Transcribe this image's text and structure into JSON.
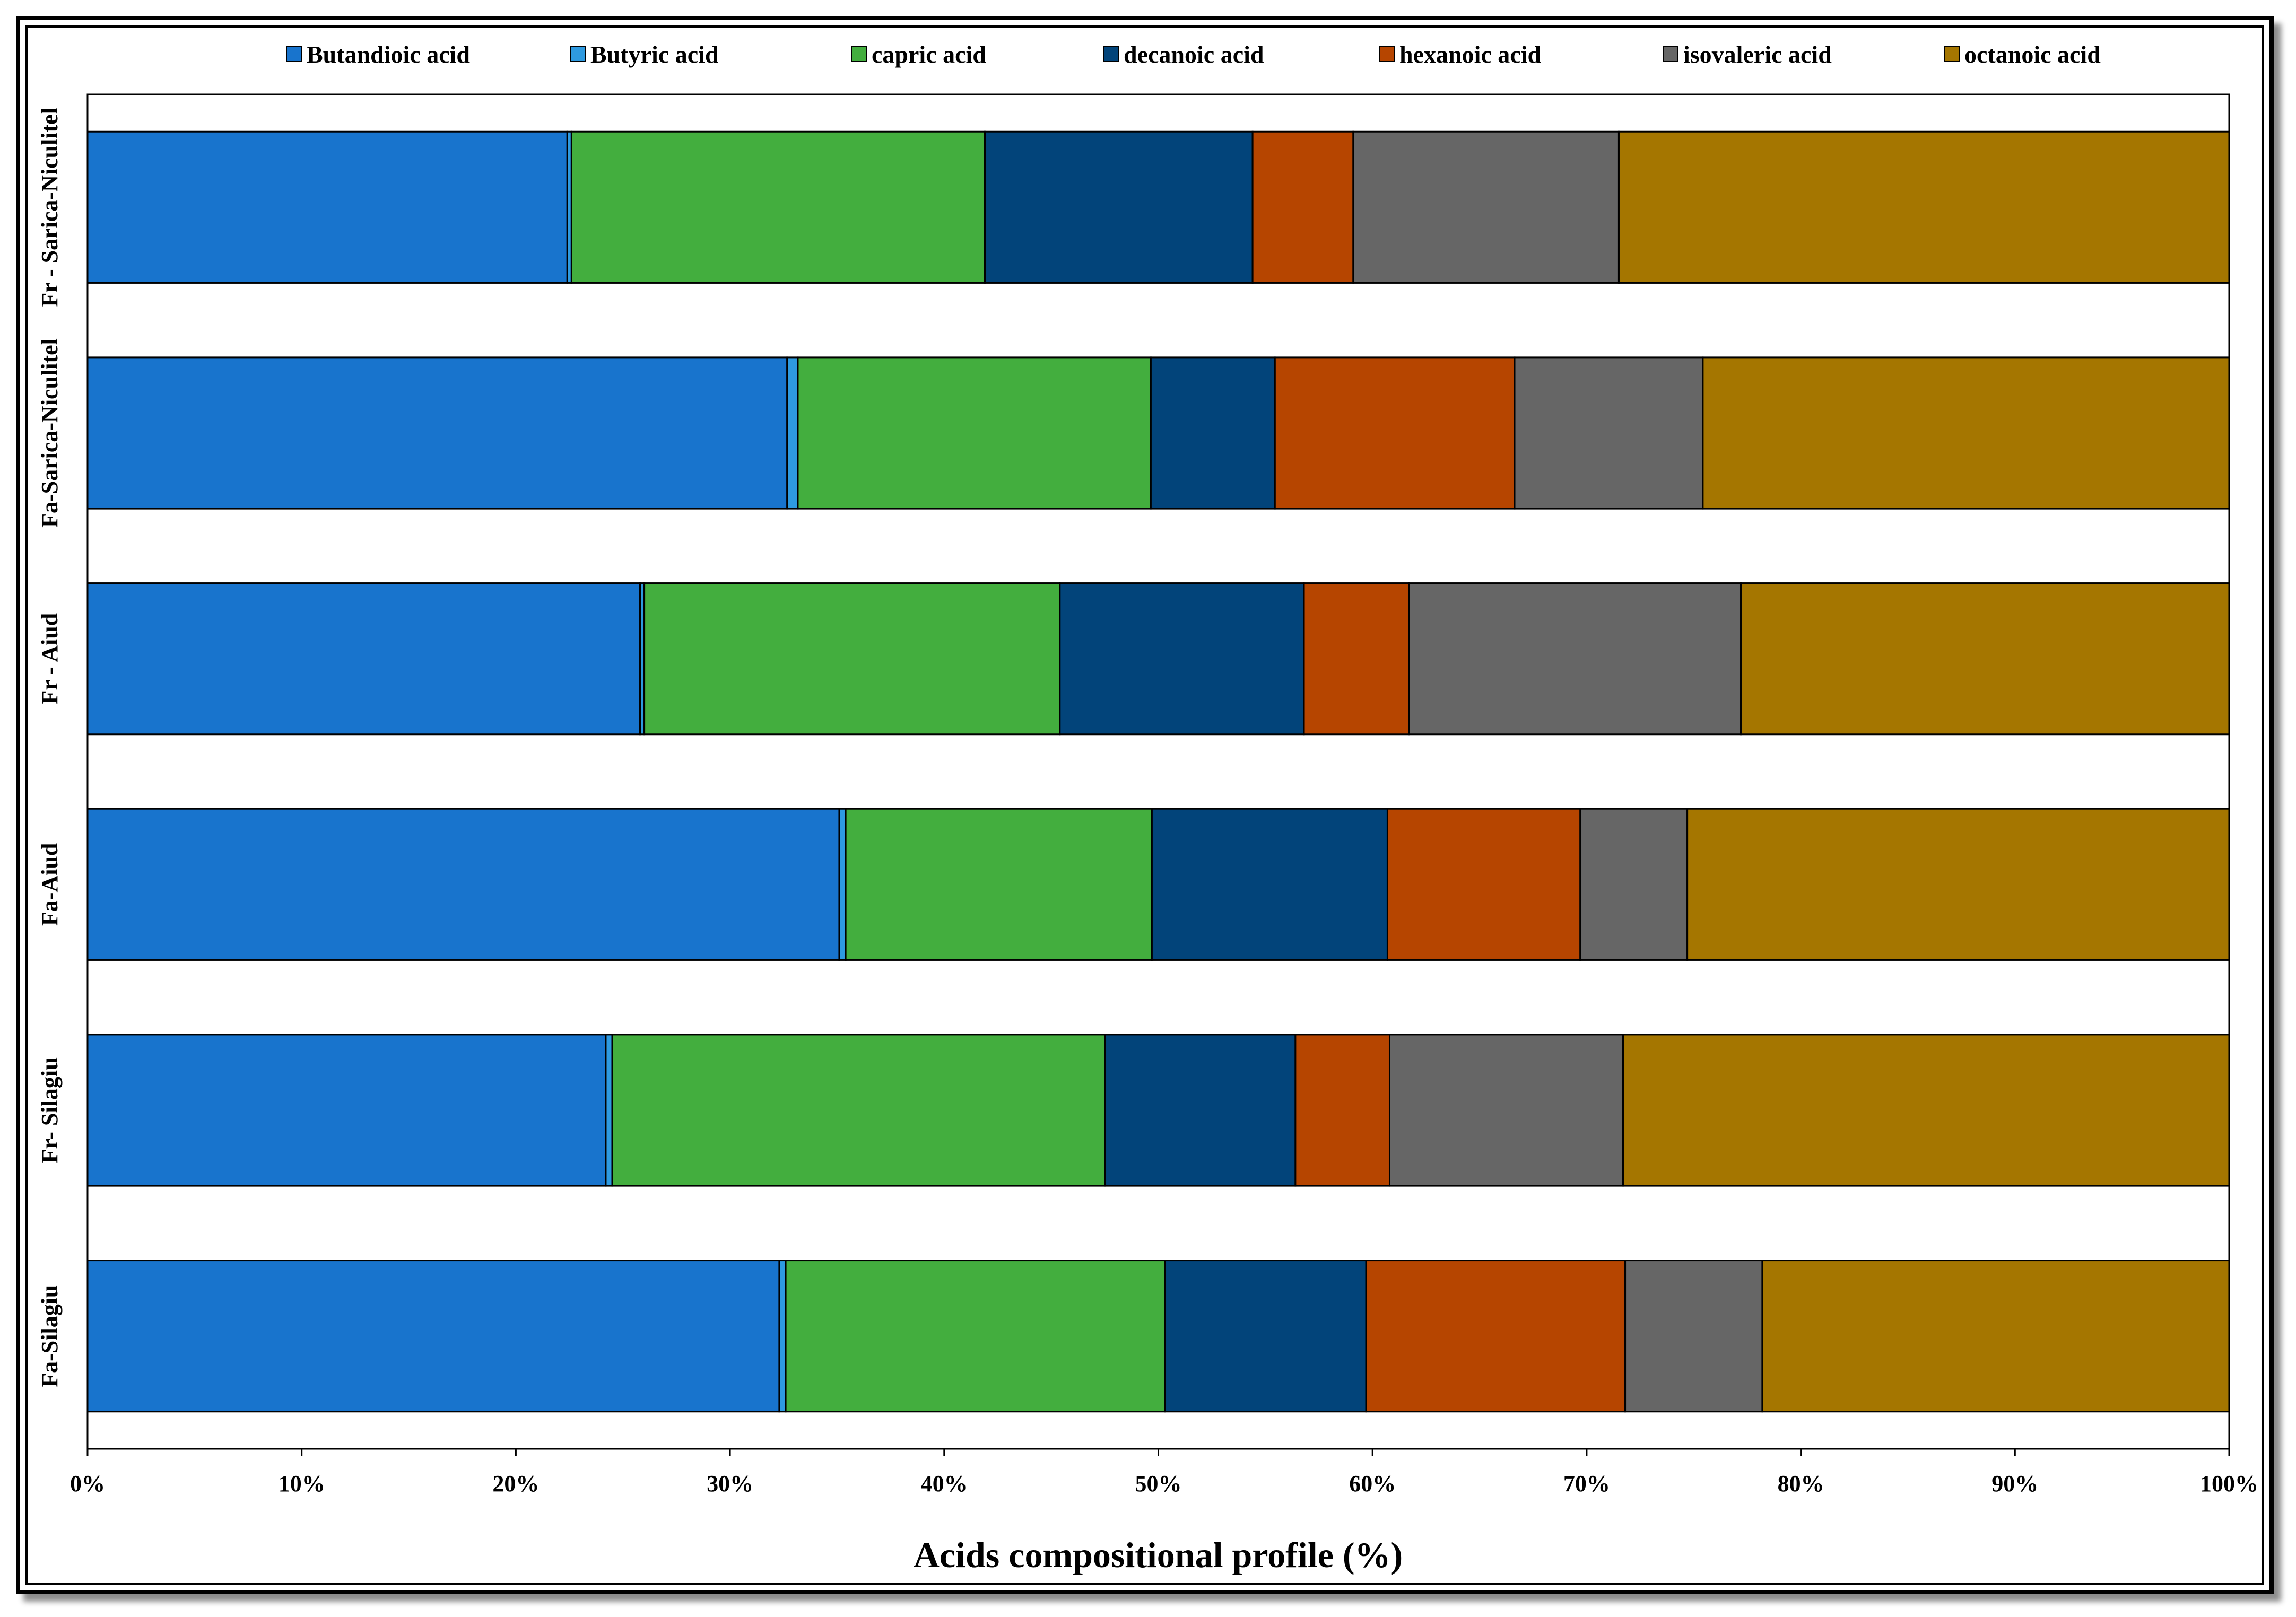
{
  "chart_data": {
    "type": "bar",
    "orientation": "horizontal",
    "stacked": "percent",
    "xlabel": "Acids compositional profile (%)",
    "ylabel": "",
    "xlim": [
      0,
      100
    ],
    "x_ticks": [
      "0%",
      "10%",
      "20%",
      "30%",
      "40%",
      "50%",
      "60%",
      "70%",
      "80%",
      "90%",
      "100%"
    ],
    "legend_position": "top",
    "categories": [
      "Fa-Silagiu",
      "Fr- Silagiu",
      "Fa-Aiud",
      "Fr - Aiud",
      "Fa-Sarica-Niculitel",
      "Fr - Sarica-Niculitel"
    ],
    "series": [
      {
        "name": "Butandioic acid",
        "color": "#1874CD",
        "values": [
          32.3,
          24.2,
          35.1,
          25.8,
          32.7,
          22.4
        ]
      },
      {
        "name": "Butyric acid",
        "color": "#2E9AE0",
        "values": [
          0.3,
          0.3,
          0.3,
          0.2,
          0.5,
          0.2
        ]
      },
      {
        "name": "capric acid",
        "color": "#43AE3E",
        "values": [
          17.7,
          23.0,
          14.3,
          19.4,
          16.5,
          19.3
        ]
      },
      {
        "name": "decanoic acid",
        "color": "#02447A",
        "values": [
          9.4,
          8.9,
          11.0,
          11.4,
          5.8,
          12.5
        ]
      },
      {
        "name": "hexanoic acid",
        "color": "#B64500",
        "values": [
          12.1,
          4.4,
          9.0,
          4.9,
          11.2,
          4.7
        ]
      },
      {
        "name": "isovaleric acid",
        "color": "#666666",
        "values": [
          6.4,
          10.9,
          5.0,
          15.5,
          8.8,
          12.4
        ]
      },
      {
        "name": "octanoic acid",
        "color": "#A57600",
        "values": [
          21.8,
          28.3,
          25.3,
          22.8,
          24.6,
          28.5
        ]
      }
    ]
  }
}
